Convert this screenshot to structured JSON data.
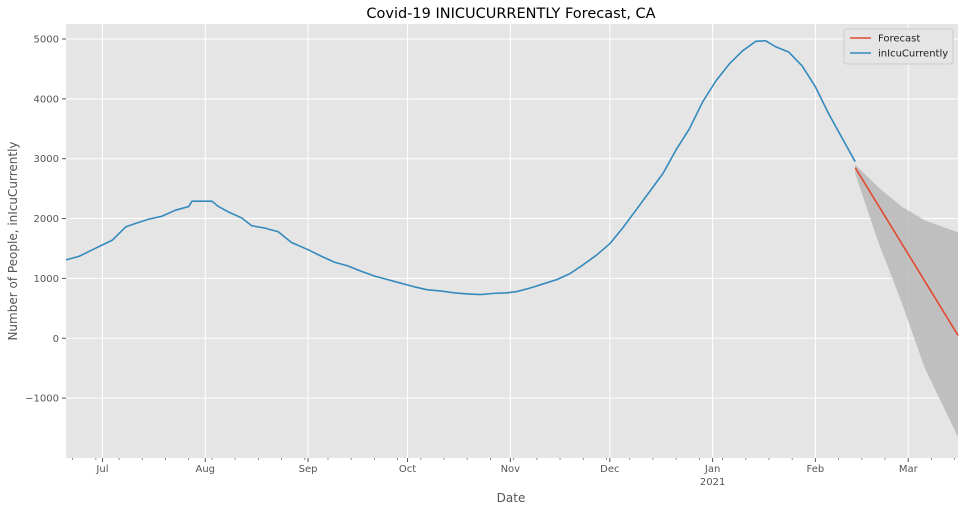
{
  "chart_data": {
    "type": "line",
    "title": "Covid-19 INICUCURRENTLY Forecast, CA",
    "xlabel": "Date",
    "ylabel": "Number of People, inIcuCurrently",
    "xlim": [
      "2020-06-20",
      "2021-03-16"
    ],
    "ylim": [
      -2000,
      5250
    ],
    "yticks": [
      -1000,
      0,
      1000,
      2000,
      3000,
      4000,
      5000
    ],
    "xticks": [
      {
        "date": "2020-07-01",
        "label": "Jul"
      },
      {
        "date": "2020-08-01",
        "label": "Aug"
      },
      {
        "date": "2020-09-01",
        "label": "Sep"
      },
      {
        "date": "2020-10-01",
        "label": "Oct"
      },
      {
        "date": "2020-11-01",
        "label": "Nov"
      },
      {
        "date": "2020-12-01",
        "label": "Dec"
      },
      {
        "date": "2021-01-01",
        "label": "Jan",
        "sublabel": "2021"
      },
      {
        "date": "2021-02-01",
        "label": "Feb"
      },
      {
        "date": "2021-03-01",
        "label": "Mar"
      }
    ],
    "grid": true,
    "legend_position": "top-right",
    "colors": {
      "forecast": "#E24A33",
      "actual": "#348ABD",
      "band": "#b8b8b8",
      "background": "#E5E5E5",
      "grid": "#ffffff"
    },
    "series": [
      {
        "name": "inIcuCurrently",
        "points": [
          [
            "2020-06-20",
            1310
          ],
          [
            "2020-06-24",
            1370
          ],
          [
            "2020-06-28",
            1480
          ],
          [
            "2020-07-01",
            1560
          ],
          [
            "2020-07-04",
            1640
          ],
          [
            "2020-07-08",
            1860
          ],
          [
            "2020-07-11",
            1920
          ],
          [
            "2020-07-15",
            1990
          ],
          [
            "2020-07-19",
            2040
          ],
          [
            "2020-07-23",
            2140
          ],
          [
            "2020-07-27",
            2200
          ],
          [
            "2020-07-28",
            2290
          ],
          [
            "2020-08-03",
            2290
          ],
          [
            "2020-08-05",
            2200
          ],
          [
            "2020-08-08",
            2110
          ],
          [
            "2020-08-12",
            2010
          ],
          [
            "2020-08-15",
            1880
          ],
          [
            "2020-08-19",
            1840
          ],
          [
            "2020-08-23",
            1780
          ],
          [
            "2020-08-27",
            1600
          ],
          [
            "2020-09-01",
            1480
          ],
          [
            "2020-09-05",
            1370
          ],
          [
            "2020-09-09",
            1270
          ],
          [
            "2020-09-13",
            1210
          ],
          [
            "2020-09-17",
            1120
          ],
          [
            "2020-09-21",
            1040
          ],
          [
            "2020-09-25",
            980
          ],
          [
            "2020-09-29",
            920
          ],
          [
            "2020-10-03",
            860
          ],
          [
            "2020-10-07",
            810
          ],
          [
            "2020-10-11",
            790
          ],
          [
            "2020-10-15",
            760
          ],
          [
            "2020-10-19",
            740
          ],
          [
            "2020-10-23",
            730
          ],
          [
            "2020-10-27",
            750
          ],
          [
            "2020-10-31",
            760
          ],
          [
            "2020-11-03",
            780
          ],
          [
            "2020-11-07",
            840
          ],
          [
            "2020-11-11",
            910
          ],
          [
            "2020-11-15",
            980
          ],
          [
            "2020-11-19",
            1080
          ],
          [
            "2020-11-23",
            1230
          ],
          [
            "2020-11-27",
            1390
          ],
          [
            "2020-12-01",
            1580
          ],
          [
            "2020-12-05",
            1850
          ],
          [
            "2020-12-09",
            2150
          ],
          [
            "2020-12-13",
            2450
          ],
          [
            "2020-12-17",
            2750
          ],
          [
            "2020-12-21",
            3150
          ],
          [
            "2020-12-25",
            3500
          ],
          [
            "2020-12-29",
            3950
          ],
          [
            "2021-01-02",
            4300
          ],
          [
            "2021-01-06",
            4580
          ],
          [
            "2021-01-10",
            4800
          ],
          [
            "2021-01-14",
            4960
          ],
          [
            "2021-01-17",
            4970
          ],
          [
            "2021-01-20",
            4870
          ],
          [
            "2021-01-24",
            4780
          ],
          [
            "2021-01-28",
            4550
          ],
          [
            "2021-02-01",
            4200
          ],
          [
            "2021-02-05",
            3750
          ],
          [
            "2021-02-09",
            3350
          ],
          [
            "2021-02-13",
            2950
          ]
        ]
      },
      {
        "name": "Forecast",
        "points": [
          [
            "2021-02-13",
            2850
          ],
          [
            "2021-03-16",
            50
          ]
        ]
      }
    ],
    "confidence_band": {
      "x": [
        "2021-02-13",
        "2021-02-20",
        "2021-02-27",
        "2021-03-06",
        "2021-03-16"
      ],
      "upper": [
        2900,
        2520,
        2200,
        1970,
        1770
      ],
      "lower": [
        2750,
        1600,
        600,
        -500,
        -1650
      ]
    }
  }
}
